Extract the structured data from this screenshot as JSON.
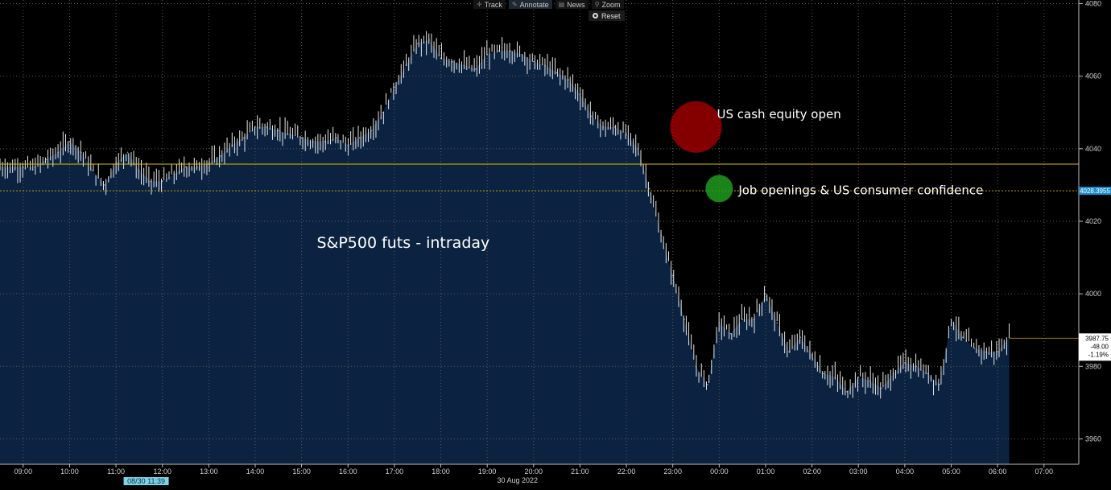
{
  "toolbar": {
    "track": "Track",
    "annotate": "Annotate",
    "news": "News",
    "zoom": "Zoom",
    "reset": "Reset",
    "track_icon": "crosshair-icon",
    "annotate_icon": "pencil-icon",
    "news_icon": "news-icon",
    "zoom_icon": "magnifier-icon"
  },
  "colors": {
    "background": "#000000",
    "area_fill": "#0b2340",
    "bars": "#e6e6e6",
    "reference_line": "#d9c200",
    "open_level_line": "#c8a000",
    "marker_red": "#b00000",
    "marker_green": "#1f9a1f",
    "price_tag": "#1d8fd0"
  },
  "chart_data": {
    "type": "line",
    "style": "ohlc-bars-with-area",
    "annotation_main": "S&P500 futs - intraday",
    "annotations": [
      {
        "text": "US cash equity open",
        "x": "23:30",
        "marker": "red"
      },
      {
        "text": "Job openings & US consumer confidence",
        "x": "00:00",
        "marker": "green"
      }
    ],
    "y_axis": {
      "ticks": [
        3960,
        3980,
        4000,
        4020,
        4040,
        4060,
        4080
      ],
      "range": [
        3953,
        4081
      ],
      "side": "right",
      "grid": true
    },
    "x_axis": {
      "ticks": [
        "09:00",
        "10:00",
        "11:00",
        "12:00",
        "13:00",
        "14:00",
        "15:00",
        "16:00",
        "17:00",
        "18:00",
        "19:00",
        "20:00",
        "21:00",
        "22:00",
        "23:00",
        "00:00",
        "01:00",
        "02:00",
        "03:00",
        "04:00",
        "05:00",
        "06:00",
        "07:00"
      ],
      "date_label": "30 Aug 2022",
      "cursor_label": "08/30 11:39",
      "grid": true
    },
    "reference_level": 4035.75,
    "price_tag": "4028.3955",
    "last": {
      "price": "3987.75",
      "change": "-48.00",
      "pct": "-1.19%"
    },
    "series": [
      {
        "x": [
          "08:30",
          "09:00",
          "09:15",
          "09:30",
          "09:45",
          "10:00",
          "10:15",
          "10:30",
          "10:45",
          "11:00",
          "11:15",
          "11:30",
          "11:45",
          "12:00",
          "12:15",
          "12:30",
          "12:45",
          "13:00",
          "13:15",
          "13:30",
          "13:45",
          "14:00",
          "14:15",
          "14:30",
          "14:45",
          "15:00",
          "15:15",
          "15:30",
          "15:45",
          "16:00",
          "16:15",
          "16:30",
          "16:45",
          "17:00",
          "17:15",
          "17:30",
          "17:45",
          "18:00",
          "18:15",
          "18:30",
          "18:45",
          "19:00",
          "19:15",
          "19:30",
          "19:45",
          "20:00",
          "20:15",
          "20:30",
          "20:45",
          "21:00",
          "21:15",
          "21:30",
          "21:45",
          "22:00",
          "22:15",
          "22:30",
          "22:45",
          "23:00",
          "23:15",
          "23:30",
          "23:45",
          "00:00",
          "00:15",
          "00:30",
          "00:45",
          "01:00",
          "01:15",
          "01:30",
          "01:45",
          "02:00",
          "02:15",
          "02:30",
          "02:45",
          "03:00",
          "03:15",
          "03:30",
          "03:45",
          "04:00",
          "04:15",
          "04:30",
          "04:45",
          "05:00",
          "05:15",
          "05:30",
          "05:45",
          "06:00",
          "06:15"
        ],
        "values": [
          4035,
          4035,
          4035,
          4037,
          4039,
          4042,
          4039,
          4034,
          4030,
          4036,
          4039,
          4034,
          4031,
          4031,
          4033,
          4035,
          4035,
          4036,
          4038,
          4041,
          4043,
          4046,
          4046,
          4045,
          4044,
          4043,
          4042,
          4042,
          4043,
          4041,
          4043,
          4045,
          4050,
          4057,
          4063,
          4069,
          4070,
          4065,
          4064,
          4063,
          4062,
          4066,
          4067,
          4067,
          4066,
          4064,
          4063,
          4061,
          4059,
          4055,
          4049,
          4046,
          4046,
          4044,
          4040,
          4029,
          4016,
          4005,
          3993,
          3980,
          3975,
          3992,
          3989,
          3993,
          3993,
          4000,
          3992,
          3984,
          3988,
          3983,
          3978,
          3977,
          3973,
          3977,
          3976,
          3974,
          3978,
          3981,
          3980,
          3978,
          3975,
          3993,
          3988,
          3985,
          3984,
          3984,
          3988
        ]
      }
    ]
  }
}
